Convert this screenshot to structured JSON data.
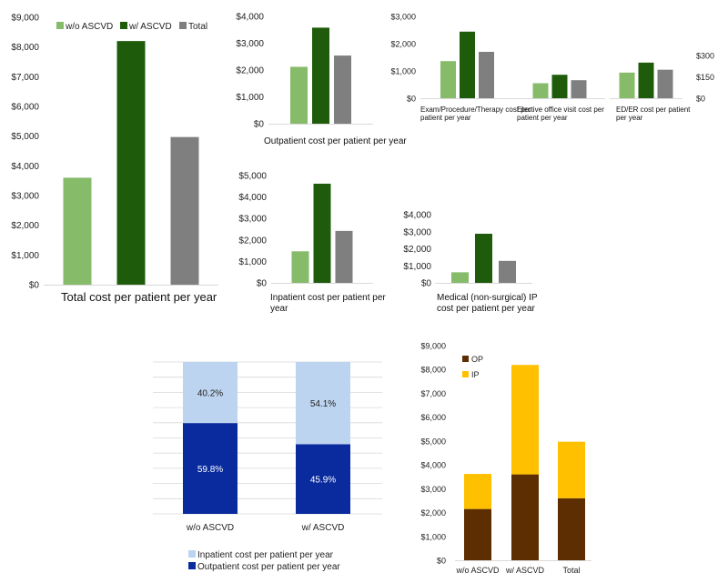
{
  "colors": {
    "wo": "#86bb6a",
    "w": "#1e5c0b",
    "total": "#7f7f7f",
    "op_dark": "#0a2b9e",
    "ip_light": "#bdd4f0",
    "op_brown": "#5c2e02",
    "ip_gold": "#ffc000",
    "grid": "#d9d9d9"
  },
  "legend": [
    "w/o ASCVD",
    "w/ ASCVD",
    "Total"
  ],
  "chart_data": [
    {
      "id": "total",
      "type": "bar",
      "title": "Total cost per patient per year",
      "categories": [
        "w/o ASCVD",
        "w/ ASCVD",
        "Total"
      ],
      "values": [
        3600,
        8200,
        4970
      ],
      "ylim": [
        0,
        9000
      ],
      "yticks": [
        "$0",
        "$1,000",
        "$2,000",
        "$3,000",
        "$4,000",
        "$5,000",
        "$6,000",
        "$7,000",
        "$8,000",
        "$9,000"
      ],
      "grid": false,
      "legend": "top"
    },
    {
      "id": "outpatient",
      "type": "bar",
      "title": "Outpatient cost per patient per year",
      "categories": [
        "w/o ASCVD",
        "w/ ASCVD",
        "Total"
      ],
      "values": [
        2120,
        3580,
        2540
      ],
      "ylim": [
        0,
        4000
      ],
      "yticks": [
        "$0",
        "$1,000",
        "$2,000",
        "$3,000",
        "$4,000"
      ],
      "grid": false
    },
    {
      "id": "inpatient",
      "type": "bar",
      "title": "Inpatient cost per patient per year",
      "categories": [
        "w/o ASCVD",
        "w/ ASCVD",
        "Total"
      ],
      "values": [
        1470,
        4620,
        2420
      ],
      "ylim": [
        0,
        5000
      ],
      "yticks": [
        "$0",
        "$1,000",
        "$2,000",
        "$3,000",
        "$4,000",
        "$5,000"
      ],
      "grid": false
    },
    {
      "id": "exam",
      "type": "bar",
      "title": "Exam/Procedure/Therapy cost per patient per year",
      "categories": [
        "w/o ASCVD",
        "w/ ASCVD",
        "Total"
      ],
      "values": [
        1360,
        2440,
        1700
      ],
      "ylim": [
        0,
        3000
      ],
      "yticks": [
        "$0",
        "$1,000",
        "$2,000",
        "$3,000"
      ],
      "grid": false
    },
    {
      "id": "elective",
      "type": "bar",
      "title": "Elective office visit cost per patient per year",
      "categories": [
        "w/o ASCVD",
        "w/ ASCVD",
        "Total"
      ],
      "values": [
        550,
        860,
        660
      ],
      "ylim": [
        0,
        3000
      ],
      "grid": false
    },
    {
      "id": "ed",
      "type": "bar",
      "title": "ED/ER cost per patient per year",
      "categories": [
        "w/o ASCVD",
        "w/ ASCVD",
        "Total"
      ],
      "values": [
        180,
        250,
        200
      ],
      "ylim": [
        0,
        300
      ],
      "yticks": [
        "$0",
        "$150",
        "$300"
      ],
      "grid": false
    },
    {
      "id": "medical_ip",
      "type": "bar",
      "title": "Medical (non-surgical) IP cost per patient per year",
      "categories": [
        "w/o ASCVD",
        "w/ ASCVD",
        "Total"
      ],
      "values": [
        620,
        2880,
        1290
      ],
      "ylim": [
        0,
        4000
      ],
      "yticks": [
        "$0",
        "$1,000",
        "$2,000",
        "$3,000",
        "$4,000"
      ],
      "grid": false
    },
    {
      "id": "share",
      "type": "bar",
      "stacked": true,
      "percent": true,
      "categories": [
        "w/o ASCVD",
        "w/ ASCVD"
      ],
      "series": [
        {
          "name": "Outpatient cost per patient per year",
          "values": [
            59.8,
            45.9
          ],
          "labels": [
            "59.8%",
            "45.9%"
          ]
        },
        {
          "name": "Inpatient cost per patient per year",
          "values": [
            40.2,
            54.1
          ],
          "labels": [
            "40.2%",
            "54.1%"
          ]
        }
      ],
      "ylim": [
        0,
        100
      ],
      "grid": true,
      "legend": "bottom"
    },
    {
      "id": "stacked_dollars",
      "type": "bar",
      "stacked": true,
      "categories": [
        "w/o ASCVD",
        "w/ ASCVD",
        "Total"
      ],
      "series": [
        {
          "name": "OP",
          "values": [
            2150,
            3600,
            2600
          ]
        },
        {
          "name": "IP",
          "values": [
            1470,
            4590,
            2370
          ]
        }
      ],
      "ylim": [
        0,
        9000
      ],
      "yticks": [
        "$0",
        "$1,000",
        "$2,000",
        "$3,000",
        "$4,000",
        "$5,000",
        "$6,000",
        "$7,000",
        "$8,000",
        "$9,000"
      ],
      "grid": false,
      "legend": "top-left"
    }
  ]
}
